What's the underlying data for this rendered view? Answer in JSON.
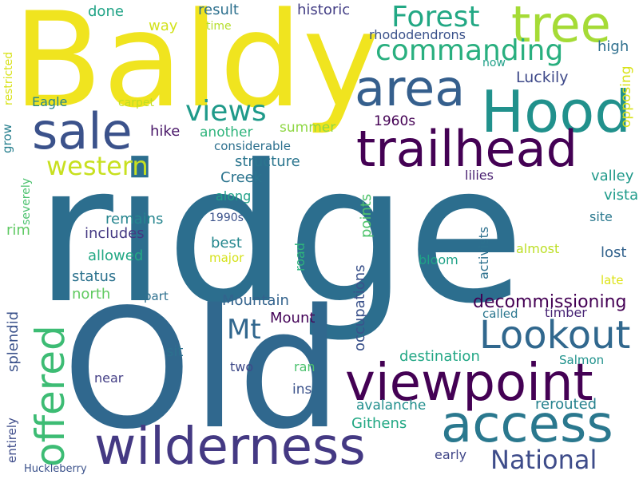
{
  "words": [
    {
      "text": "ridge",
      "color": "#2c6e8e"
    },
    {
      "text": "Baldy",
      "color": "#f0e41f"
    },
    {
      "text": "Old",
      "color": "#30688e"
    },
    {
      "text": "Hood",
      "color": "#21918c"
    },
    {
      "text": "tree",
      "color": "#a5db36"
    },
    {
      "text": "trailhead",
      "color": "#440154"
    },
    {
      "text": "area",
      "color": "#355f8d"
    },
    {
      "text": "viewpoint",
      "color": "#440154"
    },
    {
      "text": "wilderness",
      "color": "#443983"
    },
    {
      "text": "access",
      "color": "#2a788e"
    },
    {
      "text": "sale",
      "color": "#3b528b"
    },
    {
      "text": "Lookout",
      "color": "#31688e"
    },
    {
      "text": "offered",
      "color": "#3dbc74"
    },
    {
      "text": "Forest",
      "color": "#22a884"
    },
    {
      "text": "commanding",
      "color": "#29af7f"
    },
    {
      "text": "views",
      "color": "#1f9a8a"
    },
    {
      "text": "western",
      "color": "#c8e020"
    },
    {
      "text": "Mt",
      "color": "#31678e"
    },
    {
      "text": "National",
      "color": "#3e4c8a"
    },
    {
      "text": "decommissioning",
      "color": "#440154"
    },
    {
      "text": "Luckily",
      "color": "#3e4989"
    },
    {
      "text": "rhododendrons",
      "color": "#3b528b"
    },
    {
      "text": "historic",
      "color": "#433e85"
    },
    {
      "text": "result",
      "color": "#2d708e"
    },
    {
      "text": "done",
      "color": "#20a386"
    },
    {
      "text": "way",
      "color": "#d2e21b"
    },
    {
      "text": "time",
      "color": "#b5de2b"
    },
    {
      "text": "high",
      "color": "#2e6f8e"
    },
    {
      "text": "now",
      "color": "#1fa088"
    },
    {
      "text": "opposing",
      "color": "#d8e219"
    },
    {
      "text": "restricted",
      "color": "#d8e219"
    },
    {
      "text": "Eagle",
      "color": "#25858e"
    },
    {
      "text": "carpet",
      "color": "#c0df25"
    },
    {
      "text": "1960s",
      "color": "#440154"
    },
    {
      "text": "hike",
      "color": "#481668"
    },
    {
      "text": "another",
      "color": "#2fb47c"
    },
    {
      "text": "summer",
      "color": "#8fd744"
    },
    {
      "text": "grow",
      "color": "#277f8e"
    },
    {
      "text": "severely",
      "color": "#4ac16d"
    },
    {
      "text": "considerable",
      "color": "#2d708e"
    },
    {
      "text": "structure",
      "color": "#2b758e"
    },
    {
      "text": "Creek",
      "color": "#2b748e"
    },
    {
      "text": "lilies",
      "color": "#481f70"
    },
    {
      "text": "valley",
      "color": "#1f998a"
    },
    {
      "text": "vista",
      "color": "#1e9b8a"
    },
    {
      "text": "along",
      "color": "#1fa088"
    },
    {
      "text": "1990s",
      "color": "#3b528b"
    },
    {
      "text": "remains",
      "color": "#25858e"
    },
    {
      "text": "includes",
      "color": "#443983"
    },
    {
      "text": "points",
      "color": "#4ec36b"
    },
    {
      "text": "activists",
      "color": "#2d718e"
    },
    {
      "text": "site",
      "color": "#2a788e"
    },
    {
      "text": "rim",
      "color": "#5ec962"
    },
    {
      "text": "best",
      "color": "#24878e"
    },
    {
      "text": "allowed",
      "color": "#22a884"
    },
    {
      "text": "major",
      "color": "#d5e21a"
    },
    {
      "text": "road",
      "color": "#2fb47c"
    },
    {
      "text": "bloom",
      "color": "#1fa287"
    },
    {
      "text": "almost",
      "color": "#bddf26"
    },
    {
      "text": "lost",
      "color": "#33638d"
    },
    {
      "text": "status",
      "color": "#2c728e"
    },
    {
      "text": "late",
      "color": "#dde318"
    },
    {
      "text": "north",
      "color": "#60ca60"
    },
    {
      "text": "part",
      "color": "#2d708e"
    },
    {
      "text": "Mountain",
      "color": "#33638d"
    },
    {
      "text": "Mount",
      "color": "#450559"
    },
    {
      "text": "occupations",
      "color": "#3b528b"
    },
    {
      "text": "called",
      "color": "#2a768e"
    },
    {
      "text": "timber",
      "color": "#482475"
    },
    {
      "text": "splendid",
      "color": "#3b528b"
    },
    {
      "text": "sit",
      "color": "#2d708e"
    },
    {
      "text": "destination",
      "color": "#22a785"
    },
    {
      "text": "Salmon",
      "color": "#20928c"
    },
    {
      "text": "two",
      "color": "#3e4989"
    },
    {
      "text": "ran",
      "color": "#4ac16d"
    },
    {
      "text": "near",
      "color": "#433e85"
    },
    {
      "text": "ins",
      "color": "#3b528b"
    },
    {
      "text": "avalanche",
      "color": "#218f8d"
    },
    {
      "text": "rerouted",
      "color": "#26828e"
    },
    {
      "text": "Githens",
      "color": "#22a884"
    },
    {
      "text": "entirely",
      "color": "#3e4c8a"
    },
    {
      "text": "early",
      "color": "#404688"
    },
    {
      "text": "Huckleberry",
      "color": "#3b528b"
    }
  ]
}
